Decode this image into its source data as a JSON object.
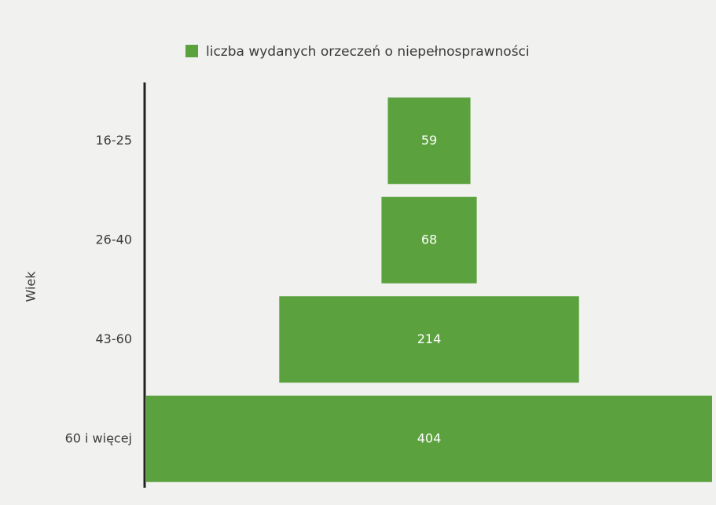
{
  "chart_data": {
    "type": "funnel",
    "legend": "liczba wydanych orzeczeń o niepełnosprawności",
    "y_label": "Wiek",
    "categories": [
      "16-25",
      "26-40",
      "43-60",
      "60 i więcej"
    ],
    "values": [
      59,
      68,
      214,
      404
    ],
    "color": "#5ba23e"
  }
}
